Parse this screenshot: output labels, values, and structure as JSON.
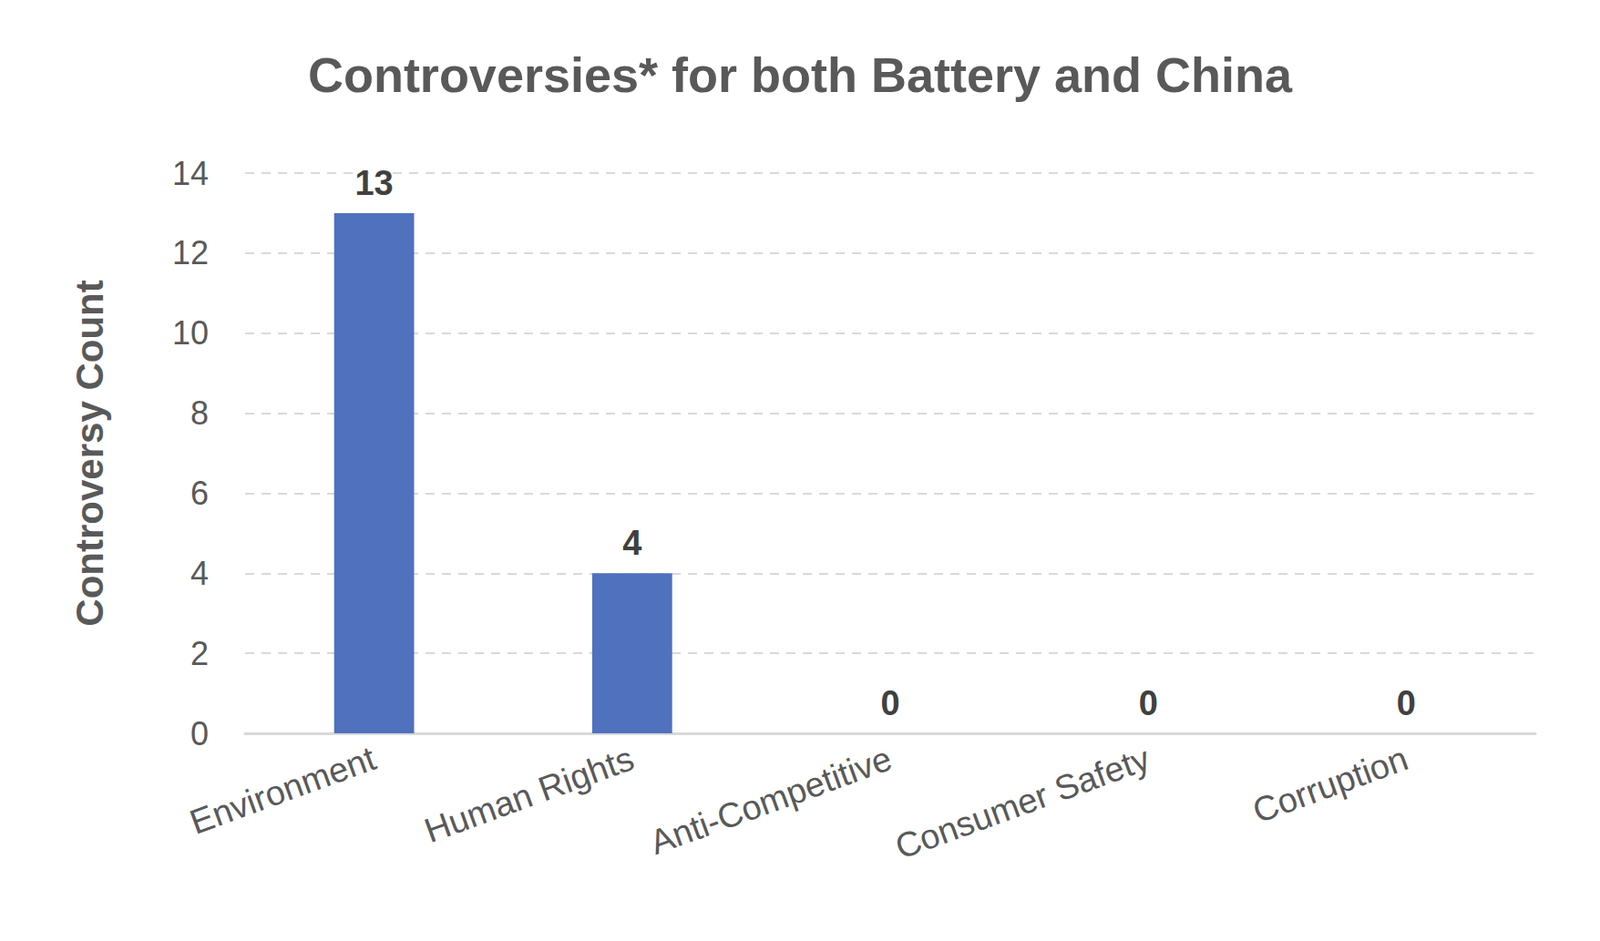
{
  "chart_data": {
    "type": "bar",
    "title": "Controversies* for both Battery and China",
    "y_label": "Controversy Count",
    "categories": [
      "Environment",
      "Human Rights",
      "Anti-Competitive",
      "Consumer Safety",
      "Corruption"
    ],
    "values": [
      13,
      4,
      0,
      0,
      0
    ],
    "color": "#4f71be",
    "ylim": [
      0,
      14
    ],
    "yticks": [
      0,
      2,
      4,
      6,
      8,
      10,
      12,
      14
    ],
    "grid": true,
    "data_labels": true
  }
}
